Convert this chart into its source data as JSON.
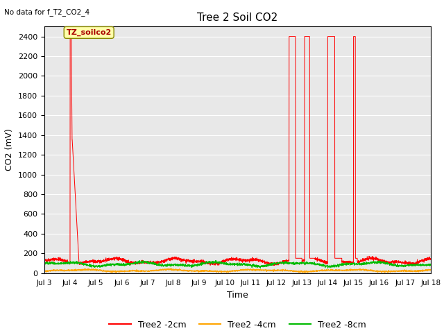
{
  "title": "Tree 2 Soil CO2",
  "subtitle": "No data for f_T2_CO2_4",
  "xlabel": "Time",
  "ylabel": "CO2 (mV)",
  "ylim": [
    0,
    2500
  ],
  "yticks": [
    0,
    200,
    400,
    600,
    800,
    1000,
    1200,
    1400,
    1600,
    1800,
    2000,
    2200,
    2400
  ],
  "xlim": [
    3,
    18
  ],
  "background_color": "#e8e8e8",
  "annotation_text": "TZ_soilco2",
  "legend_labels": [
    "Tree2 -2cm",
    "Tree2 -4cm",
    "Tree2 -8cm"
  ],
  "legend_colors": [
    "#ff0000",
    "#ffa500",
    "#00bb00"
  ],
  "line_colors": [
    "#ff0000",
    "#ffa500",
    "#00bb00"
  ],
  "spike_jul4": {
    "up": 4.0,
    "peak": 4.05,
    "plateau_end": 4.08,
    "down_to": 1350,
    "recover_end": 4.35
  },
  "spikes_later": [
    {
      "start": 12.5,
      "end": 13.0
    },
    {
      "start": 13.1,
      "end": 13.5
    },
    {
      "start": 14.0,
      "end": 14.55
    },
    {
      "start": 15.0,
      "end": 15.15
    }
  ],
  "red_base": 120,
  "orange_base": 25,
  "green_base": 90,
  "grid_color": "#ffffff",
  "fig_bg": "#ffffff"
}
